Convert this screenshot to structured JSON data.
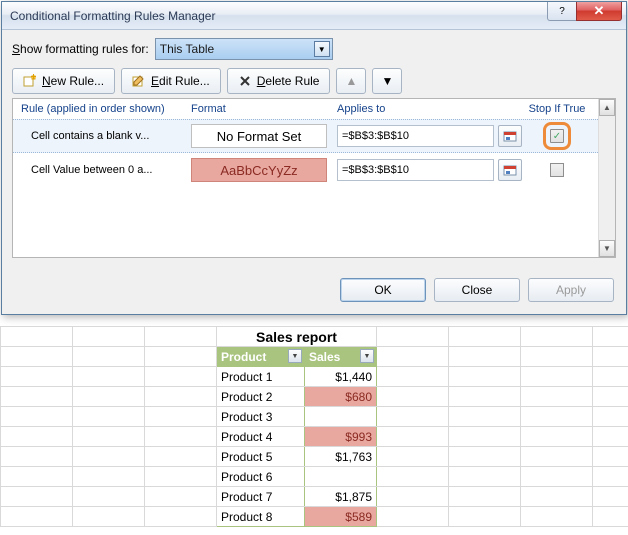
{
  "dialog": {
    "title": "Conditional Formatting Rules Manager",
    "show_label_pre": "S",
    "show_label_post": "how formatting rules for:",
    "show_value": "This Table",
    "new_rule_pre": "N",
    "new_rule_post": "ew Rule...",
    "edit_rule_pre": "E",
    "edit_rule_post": "dit Rule...",
    "delete_rule_pre": "D",
    "delete_rule_post": "elete Rule",
    "col_rule": "Rule (applied in order shown)",
    "col_format": "Format",
    "col_applies": "Applies to",
    "col_stop": "Stop If True",
    "rules": [
      {
        "name": "Cell contains a blank v...",
        "format_text": "No Format Set",
        "format_style": "plain",
        "applies": "=$B$3:$B$10",
        "stop": true,
        "highlight": true
      },
      {
        "name": "Cell Value between 0 a...",
        "format_text": "AaBbCcYyZz",
        "format_style": "red",
        "applies": "=$B$3:$B$10",
        "stop": false,
        "highlight": false
      }
    ],
    "ok": "OK",
    "close": "Close",
    "apply": "Apply"
  },
  "sheet": {
    "title": "Sales report",
    "col1": "Product",
    "col2": "Sales",
    "rows": [
      {
        "p": "Product 1",
        "s": "$1,440",
        "red": false
      },
      {
        "p": "Product 2",
        "s": "$680",
        "red": true
      },
      {
        "p": "Product 3",
        "s": "",
        "red": false
      },
      {
        "p": "Product 4",
        "s": "$993",
        "red": true
      },
      {
        "p": "Product 5",
        "s": "$1,763",
        "red": false
      },
      {
        "p": "Product 6",
        "s": "",
        "red": false
      },
      {
        "p": "Product 7",
        "s": "$1,875",
        "red": false
      },
      {
        "p": "Product 8",
        "s": "$589",
        "red": true
      }
    ]
  },
  "colors": {
    "red_fill": "#e8a8a0",
    "header_green": "#a9c47f",
    "highlight_orange": "#ed8b3a"
  }
}
